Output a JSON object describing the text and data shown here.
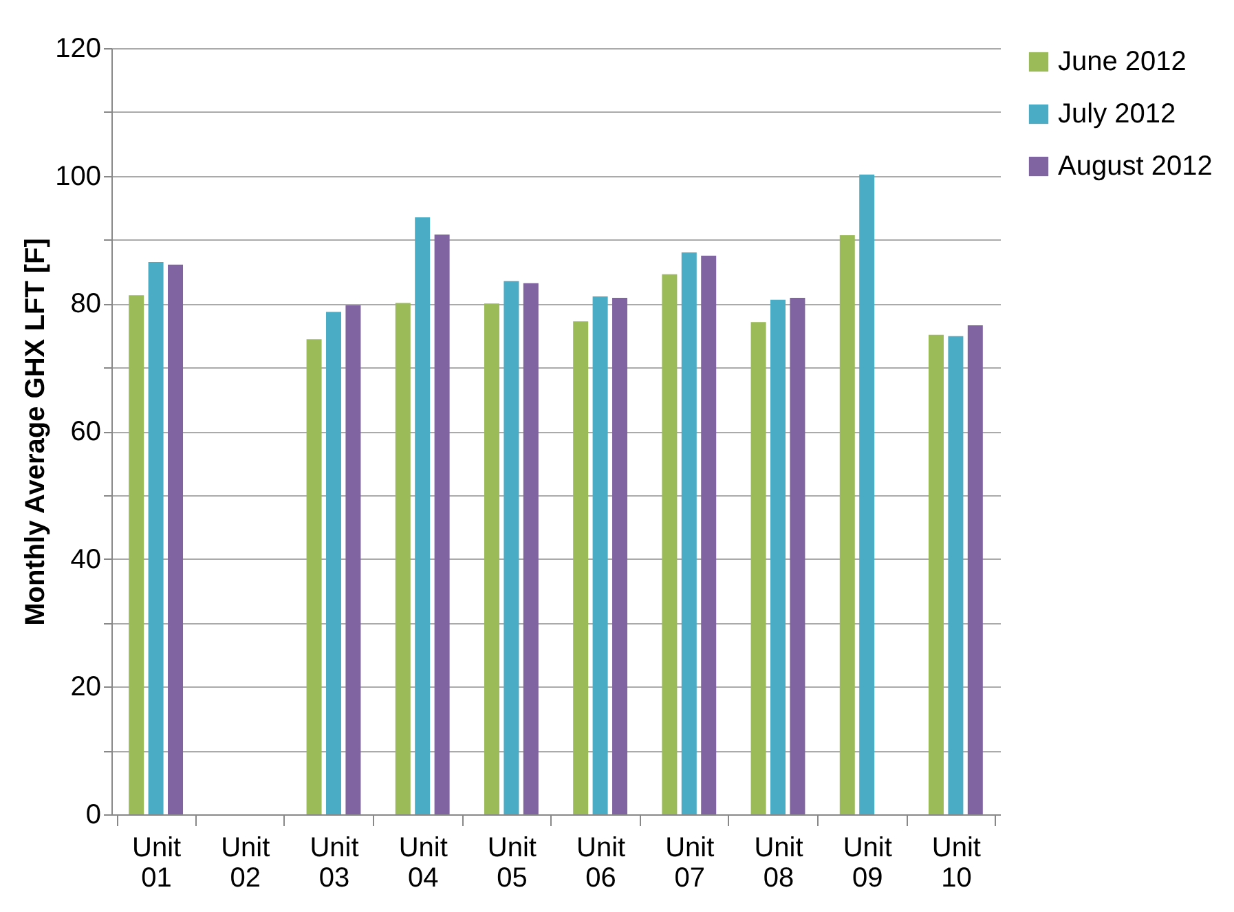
{
  "chart_data": {
    "type": "bar",
    "ylabel": "Monthly Average GHX LFT [F]",
    "categories": [
      "Unit 01",
      "Unit 02",
      "Unit 03",
      "Unit 04",
      "Unit 05",
      "Unit 06",
      "Unit 07",
      "Unit 08",
      "Unit 09",
      "Unit 10"
    ],
    "series": [
      {
        "name": "June 2012",
        "color": "#9bbb59",
        "values": [
          81.3,
          null,
          74.4,
          80.1,
          80.0,
          77.2,
          84.6,
          77.1,
          90.7,
          75.1
        ]
      },
      {
        "name": "July 2012",
        "color": "#4bacc6",
        "values": [
          86.5,
          null,
          78.7,
          93.5,
          83.5,
          81.1,
          88.0,
          80.6,
          100.2,
          74.9
        ]
      },
      {
        "name": "August 2012",
        "color": "#8064a2",
        "values": [
          86.1,
          null,
          79.7,
          90.8,
          83.2,
          80.9,
          87.5,
          80.9,
          null,
          76.6
        ]
      }
    ],
    "ylim": [
      0,
      120
    ],
    "yticks": [
      0,
      {
        "value": 10,
        "label": null
      },
      20,
      {
        "value": 30,
        "label": null
      },
      40,
      {
        "value": 50,
        "label": null
      },
      60,
      {
        "value": 70,
        "label": null
      },
      80,
      {
        "value": 90,
        "label": null
      },
      100,
      {
        "value": 110,
        "label": null
      },
      120
    ],
    "grid": "y",
    "legend": "right"
  }
}
